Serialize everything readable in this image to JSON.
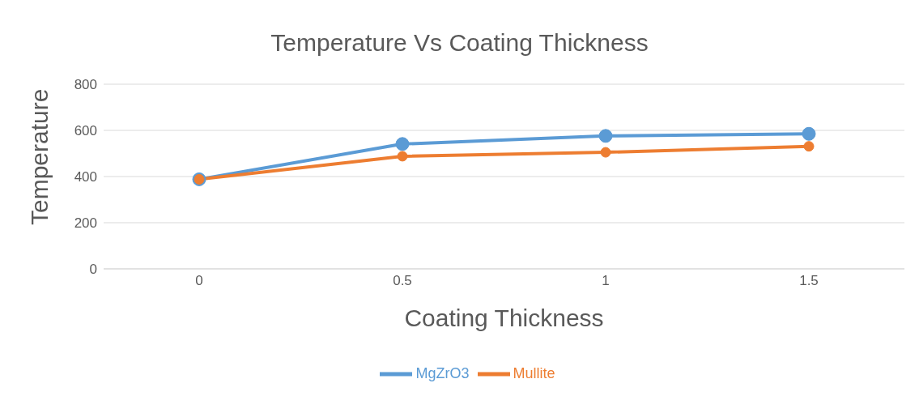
{
  "chart_data": {
    "type": "line",
    "title": "Temperature Vs Coating Thickness",
    "xlabel": "Coating Thickness",
    "ylabel": "Temperature",
    "categories": [
      "0",
      "0.5",
      "1",
      "1.5"
    ],
    "series": [
      {
        "name": "MgZrO3",
        "color": "#5b9bd5",
        "values": [
          388,
          541,
          576,
          585
        ]
      },
      {
        "name": "Mullite",
        "color": "#ed7d31",
        "values": [
          388,
          488,
          505,
          531
        ]
      }
    ],
    "ylim": [
      0,
      800
    ],
    "yticks": [
      0,
      200,
      400,
      600,
      800
    ],
    "grid": "y",
    "legend": "bottom",
    "marker": "circle",
    "line_style": "solid"
  }
}
